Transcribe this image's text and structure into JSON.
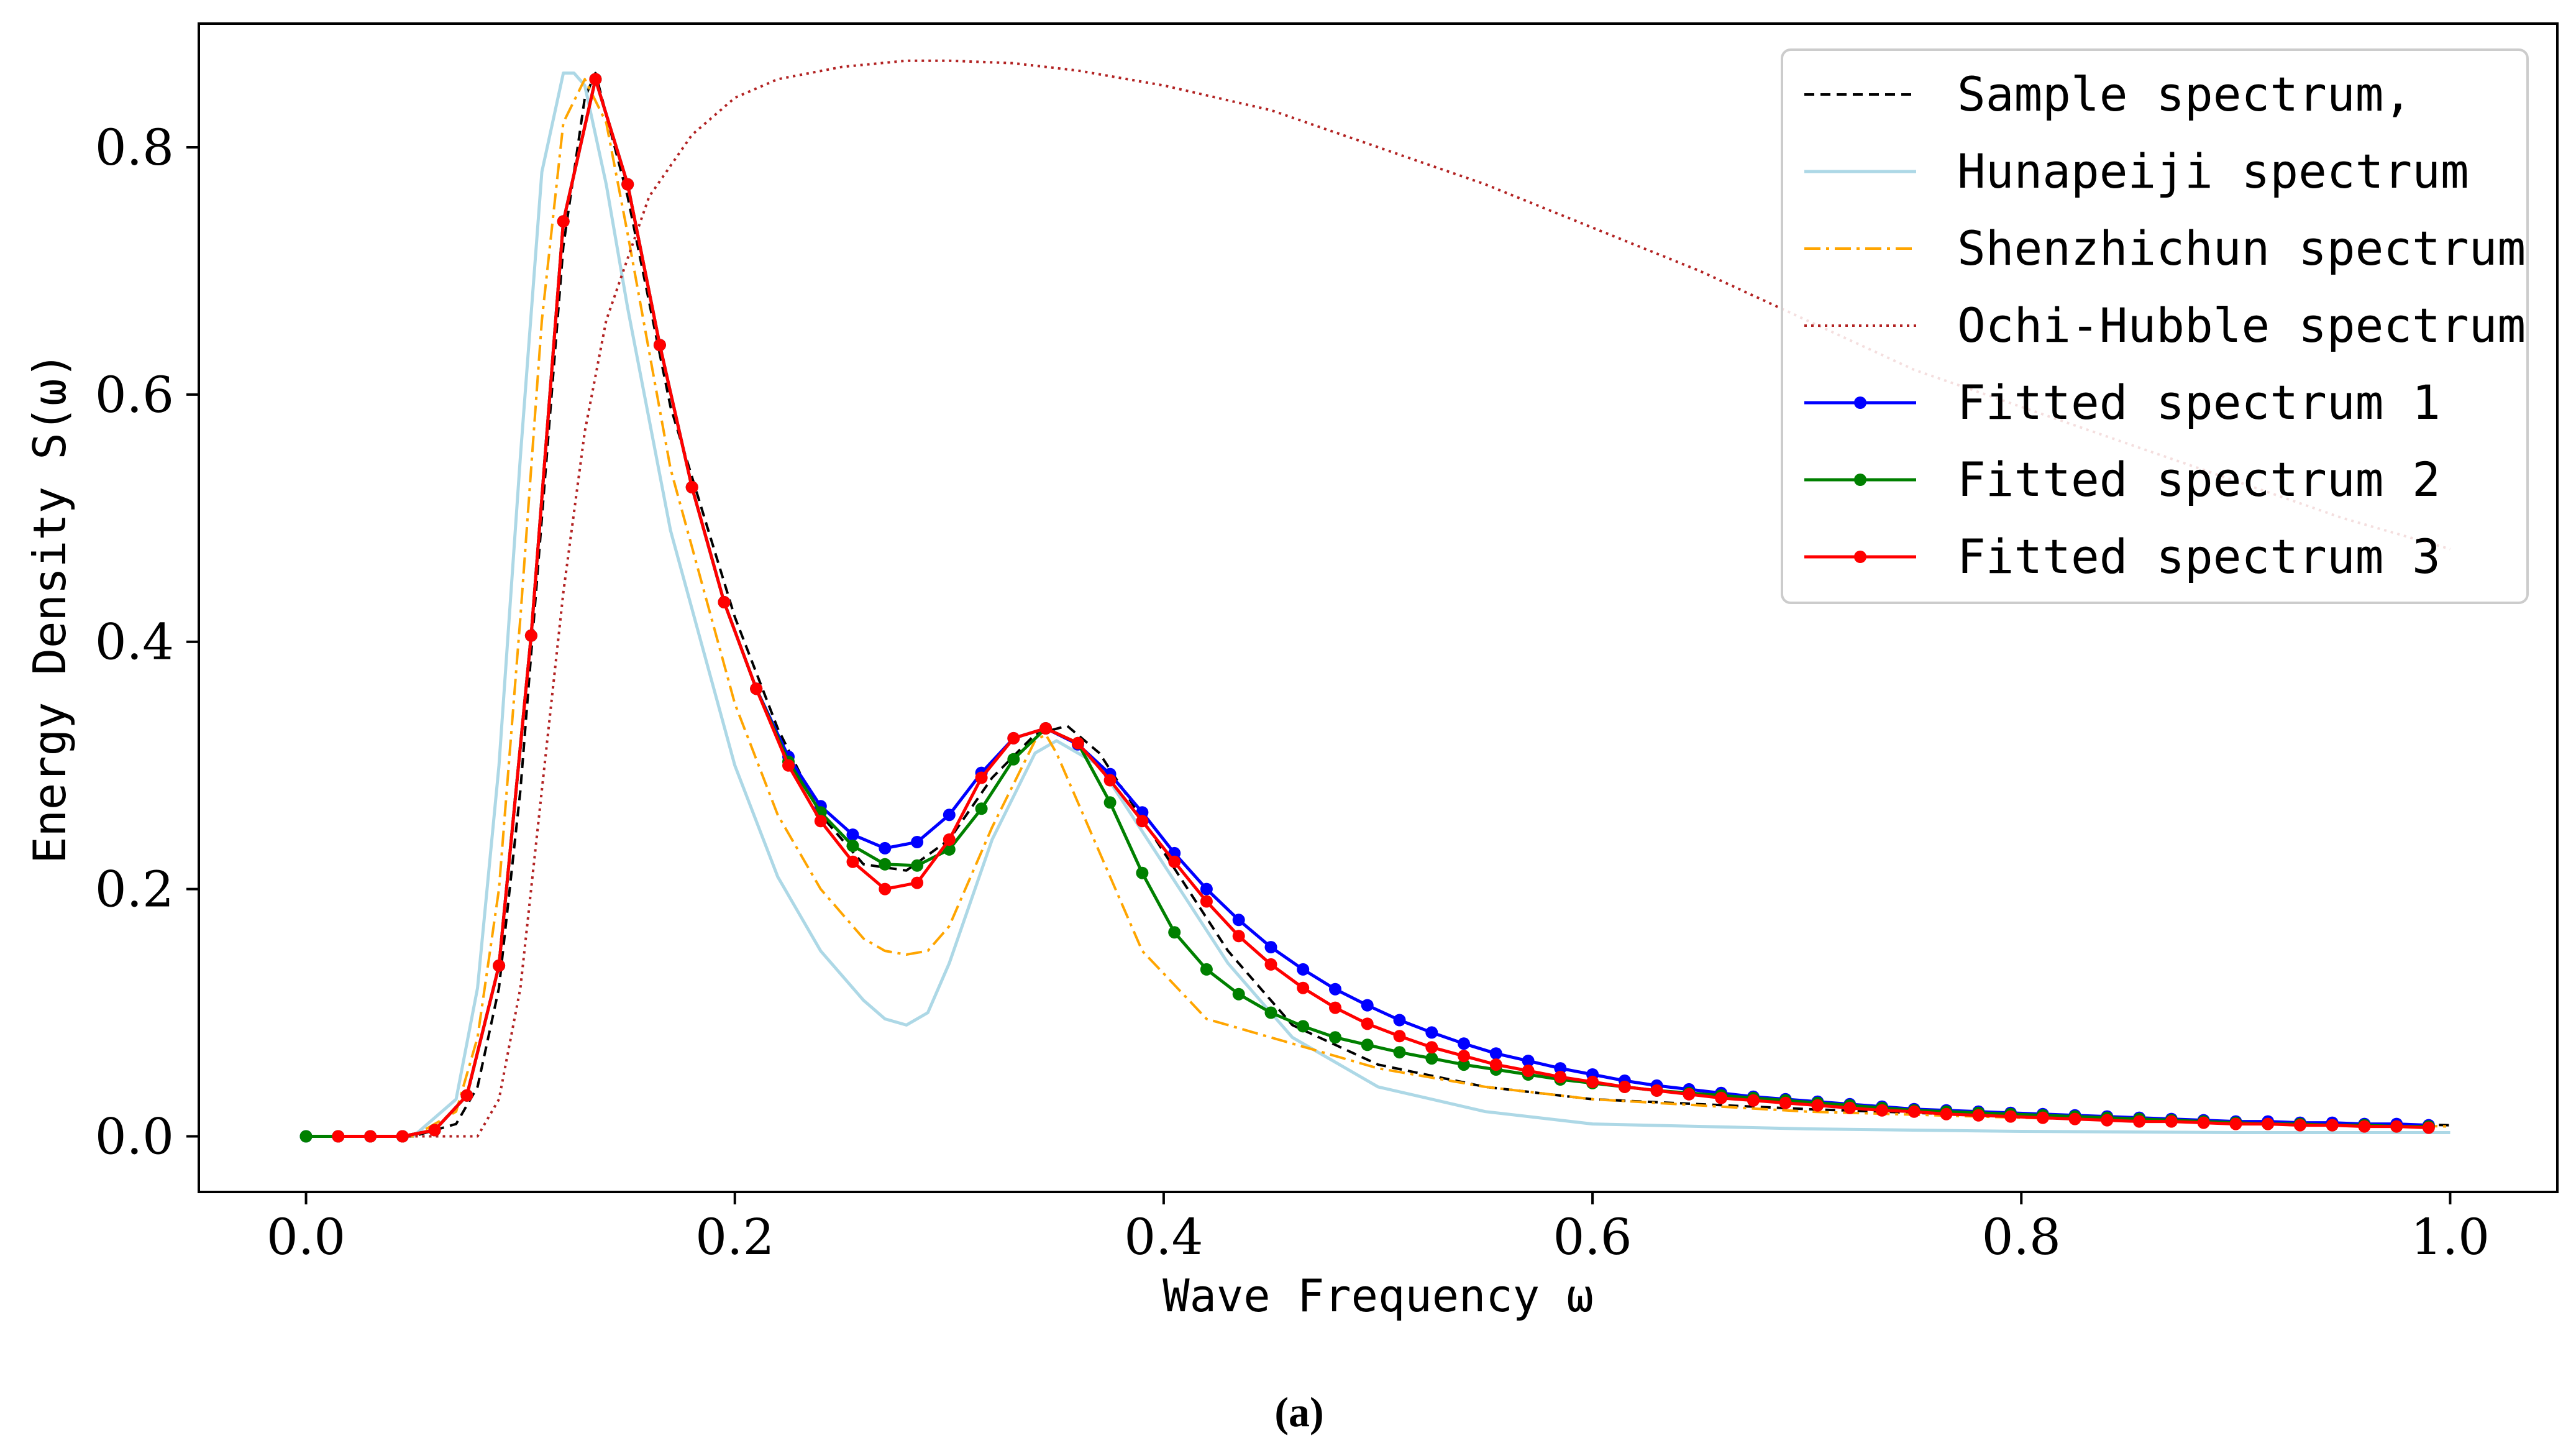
{
  "chart_data": {
    "type": "line",
    "title": "",
    "xlabel": "Wave Frequency ω",
    "ylabel": "Energy Density S(ω)",
    "xlim": [
      -0.05,
      1.05
    ],
    "ylim": [
      -0.045,
      0.9
    ],
    "x_ticks": [
      0.0,
      0.2,
      0.4,
      0.6,
      0.8,
      1.0
    ],
    "x_tick_labels": [
      "0.0",
      "0.2",
      "0.4",
      "0.6",
      "0.8",
      "1.0"
    ],
    "y_ticks": [
      0.0,
      0.2,
      0.4,
      0.6,
      0.8
    ],
    "y_tick_labels": [
      "0.0",
      "0.2",
      "0.4",
      "0.6",
      "0.8"
    ],
    "grid": false,
    "legend_position": "top-right",
    "caption": "(a)",
    "series": [
      {
        "name": "Sample spectrum,",
        "color": "#000000",
        "style": "dashed",
        "marker": false,
        "x": [
          0.0,
          0.05,
          0.07,
          0.08,
          0.09,
          0.1,
          0.11,
          0.12,
          0.13,
          0.135,
          0.15,
          0.17,
          0.2,
          0.22,
          0.24,
          0.26,
          0.28,
          0.3,
          0.32,
          0.34,
          0.355,
          0.37,
          0.4,
          0.43,
          0.46,
          0.5,
          0.55,
          0.6,
          0.7,
          0.8,
          0.9,
          1.0
        ],
        "y": [
          0.0,
          0.0,
          0.01,
          0.04,
          0.12,
          0.28,
          0.5,
          0.72,
          0.84,
          0.86,
          0.76,
          0.59,
          0.42,
          0.33,
          0.26,
          0.22,
          0.215,
          0.24,
          0.29,
          0.325,
          0.332,
          0.31,
          0.23,
          0.15,
          0.09,
          0.058,
          0.04,
          0.03,
          0.022,
          0.016,
          0.012,
          0.009
        ]
      },
      {
        "name": "Hunapeiji spectrum",
        "color": "#add8e6",
        "style": "solid",
        "marker": false,
        "x": [
          0.0,
          0.05,
          0.07,
          0.08,
          0.09,
          0.1,
          0.11,
          0.12,
          0.125,
          0.13,
          0.14,
          0.15,
          0.17,
          0.2,
          0.22,
          0.24,
          0.26,
          0.27,
          0.28,
          0.29,
          0.3,
          0.32,
          0.34,
          0.35,
          0.37,
          0.4,
          0.43,
          0.46,
          0.5,
          0.55,
          0.6,
          0.7,
          0.8,
          0.9,
          1.0
        ],
        "y": [
          0.0,
          0.0,
          0.03,
          0.12,
          0.3,
          0.55,
          0.78,
          0.86,
          0.86,
          0.85,
          0.77,
          0.67,
          0.49,
          0.3,
          0.21,
          0.15,
          0.11,
          0.095,
          0.09,
          0.1,
          0.14,
          0.24,
          0.31,
          0.32,
          0.3,
          0.22,
          0.14,
          0.08,
          0.04,
          0.02,
          0.01,
          0.006,
          0.004,
          0.003,
          0.003
        ]
      },
      {
        "name": "Shenzhichun spectrum",
        "color": "#ffa500",
        "style": "dashdot",
        "marker": false,
        "x": [
          0.0,
          0.05,
          0.07,
          0.08,
          0.09,
          0.1,
          0.11,
          0.12,
          0.13,
          0.14,
          0.15,
          0.17,
          0.2,
          0.22,
          0.24,
          0.26,
          0.27,
          0.28,
          0.29,
          0.3,
          0.32,
          0.34,
          0.345,
          0.35,
          0.37,
          0.39,
          0.42,
          0.44,
          0.47,
          0.5,
          0.55,
          0.6,
          0.7,
          0.8,
          0.9,
          1.0
        ],
        "y": [
          0.0,
          0.0,
          0.02,
          0.08,
          0.2,
          0.42,
          0.66,
          0.82,
          0.855,
          0.82,
          0.73,
          0.54,
          0.35,
          0.26,
          0.2,
          0.16,
          0.15,
          0.147,
          0.15,
          0.17,
          0.25,
          0.32,
          0.325,
          0.31,
          0.23,
          0.15,
          0.095,
          0.085,
          0.07,
          0.055,
          0.04,
          0.03,
          0.02,
          0.015,
          0.011,
          0.008
        ]
      },
      {
        "name": "Ochi-Hubble spectrum",
        "color": "#b22222",
        "style": "dotted",
        "marker": false,
        "x": [
          0.0,
          0.08,
          0.09,
          0.1,
          0.11,
          0.12,
          0.13,
          0.14,
          0.16,
          0.18,
          0.2,
          0.22,
          0.25,
          0.28,
          0.3,
          0.33,
          0.36,
          0.4,
          0.45,
          0.5,
          0.55,
          0.6,
          0.65,
          0.7,
          0.75,
          0.8,
          0.85,
          0.9,
          0.95,
          1.0
        ],
        "y": [
          0.0,
          0.0,
          0.03,
          0.12,
          0.28,
          0.44,
          0.57,
          0.66,
          0.76,
          0.81,
          0.84,
          0.855,
          0.865,
          0.87,
          0.87,
          0.868,
          0.862,
          0.85,
          0.83,
          0.8,
          0.77,
          0.735,
          0.7,
          0.66,
          0.62,
          0.59,
          0.56,
          0.53,
          0.5,
          0.475
        ]
      },
      {
        "name": "Fitted spectrum 1",
        "color": "#0000ff",
        "style": "solid",
        "marker": true,
        "x": [
          0.0,
          0.015,
          0.03,
          0.045,
          0.06,
          0.075,
          0.09,
          0.105,
          0.12,
          0.135,
          0.15,
          0.165,
          0.18,
          0.195,
          0.21,
          0.225,
          0.24,
          0.255,
          0.27,
          0.285,
          0.3,
          0.315,
          0.33,
          0.345,
          0.36,
          0.375,
          0.39,
          0.405,
          0.42,
          0.435,
          0.45,
          0.465,
          0.48,
          0.495,
          0.51,
          0.525,
          0.54,
          0.555,
          0.57,
          0.585,
          0.6,
          0.615,
          0.63,
          0.645,
          0.66,
          0.675,
          0.69,
          0.705,
          0.72,
          0.735,
          0.75,
          0.765,
          0.78,
          0.795,
          0.81,
          0.825,
          0.84,
          0.855,
          0.87,
          0.885,
          0.9,
          0.915,
          0.93,
          0.945,
          0.96,
          0.975,
          0.99
        ],
        "y": [
          0.0,
          0.0,
          0.0,
          0.0,
          0.005,
          0.033,
          0.138,
          0.405,
          0.74,
          0.855,
          0.77,
          0.64,
          0.525,
          0.432,
          0.362,
          0.307,
          0.267,
          0.244,
          0.233,
          0.238,
          0.26,
          0.294,
          0.322,
          0.33,
          0.317,
          0.293,
          0.262,
          0.229,
          0.2,
          0.175,
          0.153,
          0.135,
          0.119,
          0.106,
          0.094,
          0.084,
          0.075,
          0.067,
          0.061,
          0.055,
          0.05,
          0.045,
          0.041,
          0.038,
          0.035,
          0.032,
          0.03,
          0.028,
          0.026,
          0.024,
          0.022,
          0.021,
          0.02,
          0.019,
          0.018,
          0.017,
          0.016,
          0.015,
          0.014,
          0.013,
          0.012,
          0.012,
          0.011,
          0.011,
          0.01,
          0.01,
          0.009
        ]
      },
      {
        "name": "Fitted spectrum 2",
        "color": "#008000",
        "style": "solid",
        "marker": true,
        "x": [
          0.0,
          0.015,
          0.03,
          0.045,
          0.06,
          0.075,
          0.09,
          0.105,
          0.12,
          0.135,
          0.15,
          0.165,
          0.18,
          0.195,
          0.21,
          0.225,
          0.24,
          0.255,
          0.27,
          0.285,
          0.3,
          0.315,
          0.33,
          0.345,
          0.36,
          0.375,
          0.39,
          0.405,
          0.42,
          0.435,
          0.45,
          0.465,
          0.48,
          0.495,
          0.51,
          0.525,
          0.54,
          0.555,
          0.57,
          0.585,
          0.6,
          0.615,
          0.63,
          0.645,
          0.66,
          0.675,
          0.69,
          0.705,
          0.72,
          0.735,
          0.75,
          0.765,
          0.78,
          0.795,
          0.81,
          0.825,
          0.84,
          0.855,
          0.87,
          0.885,
          0.9,
          0.915,
          0.93,
          0.945,
          0.96,
          0.975,
          0.99
        ],
        "y": [
          0.0,
          0.0,
          0.0,
          0.0,
          0.005,
          0.033,
          0.138,
          0.405,
          0.74,
          0.855,
          0.77,
          0.64,
          0.525,
          0.432,
          0.362,
          0.303,
          0.262,
          0.235,
          0.22,
          0.219,
          0.232,
          0.265,
          0.305,
          0.33,
          0.318,
          0.27,
          0.213,
          0.165,
          0.135,
          0.115,
          0.1,
          0.089,
          0.08,
          0.074,
          0.068,
          0.063,
          0.058,
          0.054,
          0.05,
          0.046,
          0.043,
          0.04,
          0.037,
          0.035,
          0.033,
          0.031,
          0.029,
          0.027,
          0.025,
          0.023,
          0.021,
          0.02,
          0.019,
          0.018,
          0.017,
          0.016,
          0.015,
          0.014,
          0.013,
          0.012,
          0.011,
          0.01,
          0.01,
          0.009,
          0.009,
          0.008,
          0.008
        ]
      },
      {
        "name": "Fitted spectrum 3",
        "color": "#ff0000",
        "style": "solid",
        "marker": true,
        "x": [
          0.015,
          0.03,
          0.045,
          0.06,
          0.075,
          0.09,
          0.105,
          0.12,
          0.135,
          0.15,
          0.165,
          0.18,
          0.195,
          0.21,
          0.225,
          0.24,
          0.255,
          0.27,
          0.285,
          0.3,
          0.315,
          0.33,
          0.345,
          0.36,
          0.375,
          0.39,
          0.405,
          0.42,
          0.435,
          0.45,
          0.465,
          0.48,
          0.495,
          0.51,
          0.525,
          0.54,
          0.555,
          0.57,
          0.585,
          0.6,
          0.615,
          0.63,
          0.645,
          0.66,
          0.675,
          0.69,
          0.705,
          0.72,
          0.735,
          0.75,
          0.765,
          0.78,
          0.795,
          0.81,
          0.825,
          0.84,
          0.855,
          0.87,
          0.885,
          0.9,
          0.915,
          0.93,
          0.945,
          0.96,
          0.975,
          0.99
        ],
        "y": [
          0.0,
          0.0,
          0.0,
          0.005,
          0.033,
          0.138,
          0.405,
          0.74,
          0.855,
          0.77,
          0.64,
          0.525,
          0.432,
          0.362,
          0.3,
          0.255,
          0.222,
          0.2,
          0.205,
          0.24,
          0.29,
          0.322,
          0.33,
          0.318,
          0.288,
          0.255,
          0.222,
          0.19,
          0.162,
          0.139,
          0.12,
          0.104,
          0.091,
          0.081,
          0.072,
          0.065,
          0.058,
          0.053,
          0.048,
          0.044,
          0.04,
          0.037,
          0.034,
          0.031,
          0.029,
          0.027,
          0.025,
          0.023,
          0.021,
          0.02,
          0.018,
          0.017,
          0.016,
          0.015,
          0.014,
          0.013,
          0.012,
          0.012,
          0.011,
          0.01,
          0.01,
          0.009,
          0.009,
          0.008,
          0.008,
          0.007
        ]
      }
    ]
  }
}
